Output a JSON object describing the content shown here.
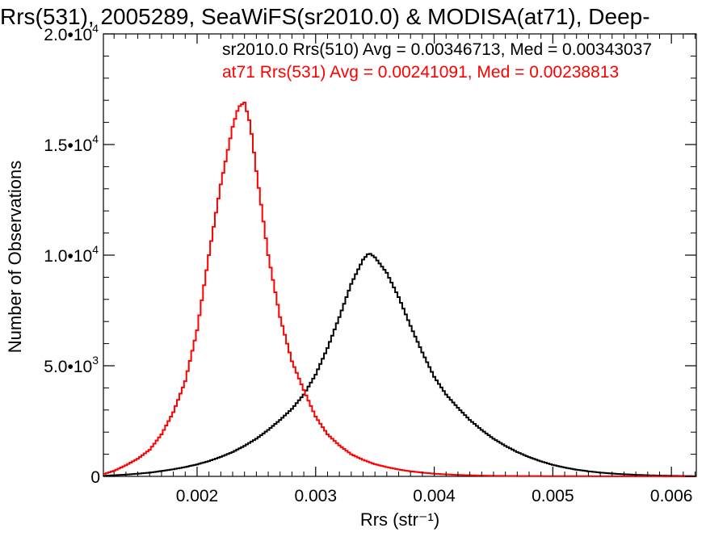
{
  "chart_data": {
    "type": "line",
    "title": "Rrs(531), 2005289, SeaWiFS(sr2010.0) & MODISA(at71), Deep-",
    "xlabel": "Rrs (str⁻¹)",
    "ylabel": "Number of Observations",
    "xlim": [
      0.00121,
      0.00621
    ],
    "ylim": [
      0,
      20000
    ],
    "x_ticks": [
      {
        "value": 0.002,
        "label": "0.002"
      },
      {
        "value": 0.003,
        "label": "0.003"
      },
      {
        "value": 0.004,
        "label": "0.004"
      },
      {
        "value": 0.005,
        "label": "0.005"
      },
      {
        "value": 0.006,
        "label": "0.006"
      }
    ],
    "y_ticks": [
      {
        "value": 0,
        "base": "0",
        "exp": ""
      },
      {
        "value": 5000,
        "base": "5.0•10",
        "exp": "3"
      },
      {
        "value": 10000,
        "base": "1.0•10",
        "exp": "4"
      },
      {
        "value": 15000,
        "base": "1.5•10",
        "exp": "4"
      },
      {
        "value": 20000,
        "base": "2.0•10",
        "exp": "4"
      }
    ],
    "grid": false,
    "legend_position": "top-right",
    "series": [
      {
        "name": "sr2010.0 Rrs(510) Avg = 0.00346713, Med = 0.00343037",
        "color": "#000000",
        "x": [
          0.00121,
          0.0013,
          0.0014,
          0.0015,
          0.0016,
          0.0017,
          0.0018,
          0.0019,
          0.002,
          0.0021,
          0.0022,
          0.0023,
          0.0024,
          0.0025,
          0.0026,
          0.0027,
          0.0028,
          0.0029,
          0.003,
          0.0031,
          0.0032,
          0.0033,
          0.0034,
          0.00345,
          0.0035,
          0.0036,
          0.0037,
          0.0038,
          0.0039,
          0.004,
          0.0041,
          0.0042,
          0.0043,
          0.0044,
          0.0045,
          0.0046,
          0.0047,
          0.0048,
          0.0049,
          0.005,
          0.0051,
          0.0052,
          0.0053,
          0.0054,
          0.0055,
          0.0056,
          0.0057,
          0.0058,
          0.0059,
          0.006,
          0.0061,
          0.00621
        ],
        "y": [
          20,
          50,
          80,
          120,
          170,
          240,
          320,
          420,
          540,
          690,
          880,
          1100,
          1380,
          1700,
          2100,
          2550,
          3050,
          3700,
          4600,
          5800,
          7200,
          8700,
          9800,
          10100,
          9900,
          9200,
          8100,
          6800,
          5600,
          4500,
          3700,
          3100,
          2550,
          2100,
          1700,
          1380,
          1100,
          870,
          680,
          520,
          400,
          300,
          230,
          170,
          130,
          95,
          70,
          50,
          35,
          25,
          15,
          10
        ]
      },
      {
        "name": "at71 Rrs(531) Avg = 0.00241091, Med = 0.00238813",
        "color": "#ff0000",
        "x": [
          0.00121,
          0.0013,
          0.0014,
          0.0015,
          0.0016,
          0.0017,
          0.0018,
          0.0019,
          0.002,
          0.0021,
          0.0022,
          0.0023,
          0.00235,
          0.0024,
          0.00245,
          0.0025,
          0.0026,
          0.0027,
          0.0028,
          0.0029,
          0.003,
          0.0031,
          0.0032,
          0.0033,
          0.0034,
          0.0035,
          0.0036,
          0.0037,
          0.0038,
          0.0039,
          0.004,
          0.0041,
          0.0042,
          0.0043,
          0.0044,
          0.0045,
          0.0047,
          0.005,
          0.0055,
          0.006,
          0.00621
        ],
        "y": [
          100,
          250,
          500,
          800,
          1200,
          1900,
          2900,
          4300,
          6600,
          10000,
          13200,
          15800,
          16700,
          16900,
          15900,
          13800,
          10000,
          7200,
          5200,
          3900,
          2700,
          1900,
          1400,
          1000,
          750,
          550,
          420,
          310,
          230,
          170,
          120,
          90,
          65,
          50,
          35,
          25,
          15,
          10,
          5,
          2,
          0
        ]
      }
    ]
  }
}
